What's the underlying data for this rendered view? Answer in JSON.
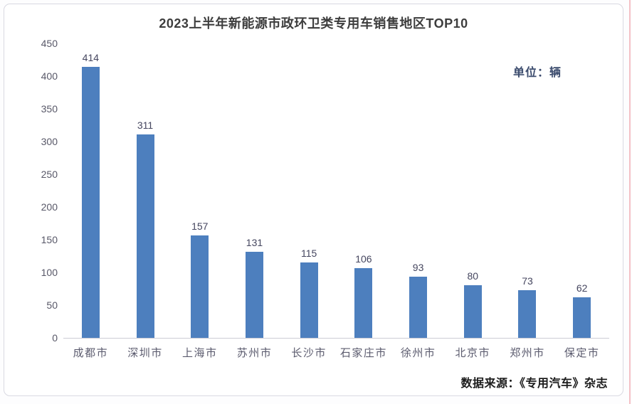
{
  "chart": {
    "title": "2023上半年新能源市政环卫类专用车销售地区TOP10",
    "unit_label": "单位：辆"
  },
  "chart_data": {
    "type": "bar",
    "title": "2023上半年新能源市政环卫类专用车销售地区TOP10",
    "categories": [
      "成都市",
      "深圳市",
      "上海市",
      "苏州市",
      "长沙市",
      "石家庄市",
      "徐州市",
      "北京市",
      "郑州市",
      "保定市"
    ],
    "values": [
      414,
      311,
      157,
      131,
      115,
      106,
      93,
      80,
      73,
      62
    ],
    "xlabel": "",
    "ylabel": "",
    "ylim": [
      0,
      450
    ],
    "yticks": [
      0,
      50,
      100,
      150,
      200,
      250,
      300,
      350,
      400,
      450
    ],
    "grid": false,
    "legend": false,
    "value_labels_shown": true,
    "bar_color": "#4d7fbe",
    "unit": "辆"
  },
  "footer": {
    "source": "数据来源：《专用汽车》杂志"
  }
}
